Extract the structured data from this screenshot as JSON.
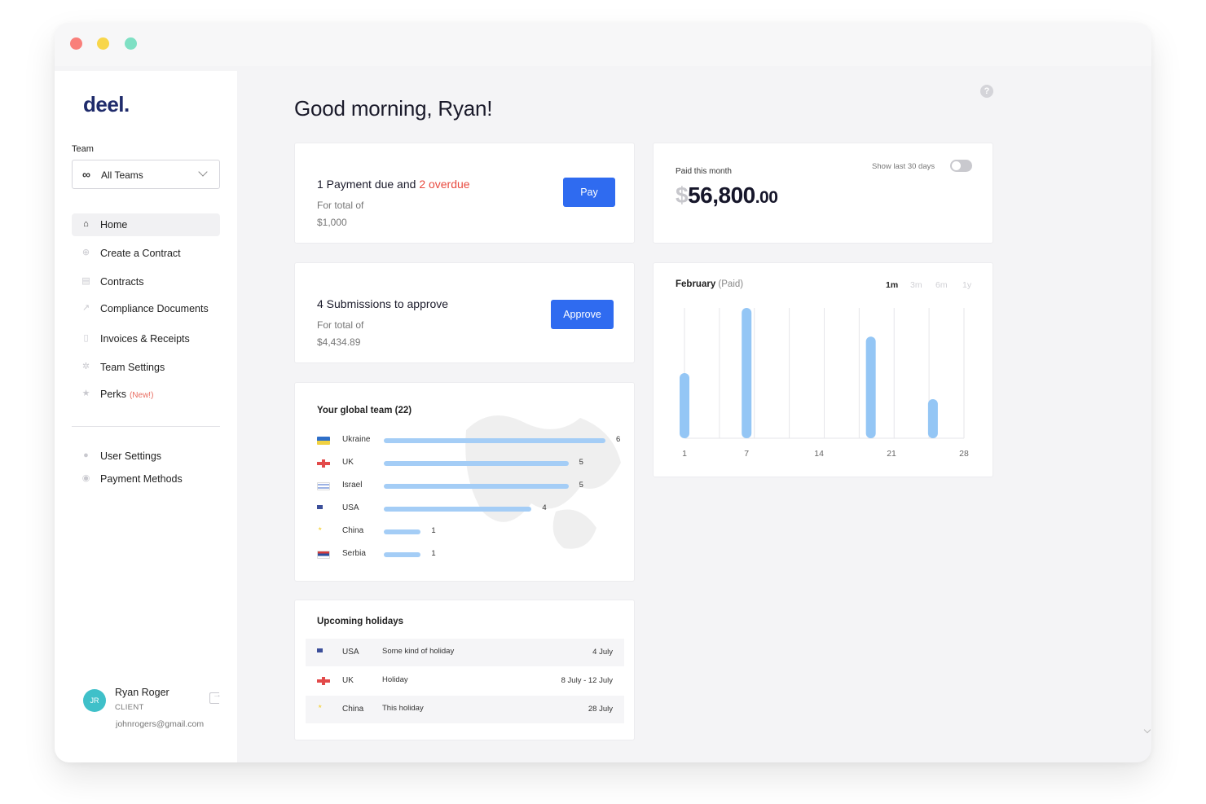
{
  "brand": {
    "logo": "deel."
  },
  "sidebar": {
    "team_label": "Team",
    "team_select": {
      "icon": "∞",
      "value": "All Teams"
    },
    "nav": [
      {
        "label": "Home",
        "icon": "home-icon",
        "active": true
      },
      {
        "label": "Create a Contract",
        "icon": "plus-circle-icon"
      },
      {
        "label": "Contracts",
        "icon": "document-icon"
      },
      {
        "label": "Compliance Documents",
        "icon": "pin-icon"
      },
      {
        "label": "Invoices & Receipts",
        "icon": "receipt-icon"
      },
      {
        "label": "Team Settings",
        "icon": "gear-icon"
      },
      {
        "label": "Perks",
        "badge": "(New!)",
        "icon": "star-icon"
      }
    ],
    "secondary_nav": [
      {
        "label": "User Settings",
        "icon": "user-icon"
      },
      {
        "label": "Payment Methods",
        "icon": "card-icon"
      }
    ],
    "user": {
      "initials": "JR",
      "name": "Ryan Roger",
      "role": "CLIENT",
      "email": "johnrogers@gmail.com"
    }
  },
  "main": {
    "greeting": "Good morning, Ryan!",
    "payment_card": {
      "title_prefix": "1 Payment due and ",
      "title_overdue": "2 overdue",
      "sub_label": "For total of",
      "amount": "$1,000",
      "button": "Pay"
    },
    "approve_card": {
      "title": "4 Submissions to approve",
      "sub_label": "For total of",
      "amount": "$4,434.89",
      "button": "Approve"
    },
    "paid_card": {
      "label": "Paid this month",
      "currency": "$",
      "amount": "56,800",
      "decimals": ".00",
      "toggle_label": "Show last 30 days",
      "toggle_on": false
    },
    "chart_card": {
      "title": "February",
      "subtitle": "(Paid)",
      "ranges": [
        "1m",
        "3m",
        "6m",
        "1y"
      ],
      "active_range": "1m"
    },
    "team_card": {
      "title": "Your global team (22)",
      "rows": [
        {
          "country": "Ukraine",
          "flag": "flag-ua",
          "count": 6
        },
        {
          "country": "UK",
          "flag": "flag-uk",
          "count": 5
        },
        {
          "country": "Israel",
          "flag": "flag-il",
          "count": 5
        },
        {
          "country": "USA",
          "flag": "flag-us",
          "count": 4
        },
        {
          "country": "China",
          "flag": "flag-cn",
          "count": 1
        },
        {
          "country": "Serbia",
          "flag": "flag-rs",
          "count": 1
        }
      ]
    },
    "holidays_card": {
      "title": "Upcoming holidays",
      "rows": [
        {
          "country": "USA",
          "flag": "flag-us",
          "name": "Some kind of holiday",
          "date": "4 July"
        },
        {
          "country": "UK",
          "flag": "flag-uk",
          "name": "Holiday",
          "date": "8 July - 12 July"
        },
        {
          "country": "China",
          "flag": "flag-cn",
          "name": "This holiday",
          "date": "28 July"
        }
      ]
    }
  },
  "chart_data": {
    "type": "bar",
    "x_ticks": [
      "1",
      "7",
      "14",
      "21",
      "28"
    ],
    "x": [
      1,
      7,
      19,
      25
    ],
    "values": [
      0.5,
      1.0,
      0.78,
      0.3
    ],
    "ylim": [
      0,
      1
    ],
    "grid": true,
    "colors": {
      "bar": "#94c6f5",
      "grid": "#e6e6ea"
    }
  },
  "colors": {
    "accent": "#2f6bf0",
    "overdue": "#e84a3f",
    "logo": "#1f2b6b",
    "team_bar": "#a4cdf6"
  }
}
